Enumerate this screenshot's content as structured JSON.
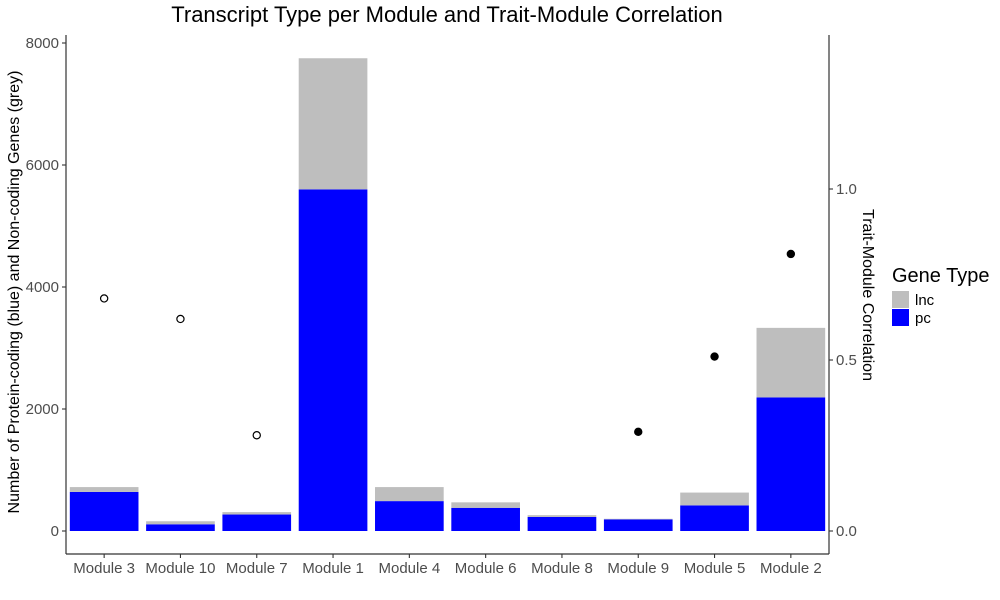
{
  "chart_data": {
    "type": "bar",
    "title": "Transcript Type per Module and Trait-Module Correlation",
    "xlabel": "",
    "ylabel": "Number of Protein-coding (blue) and Non-coding Genes (grey)",
    "y2label": "Trait-Module Correlation",
    "ylim": [
      0,
      8100
    ],
    "y2lim": [
      -0.04,
      1.45
    ],
    "yticks": [
      0,
      2000,
      4000,
      6000,
      8000
    ],
    "y2ticks": [
      0.0,
      0.5,
      1.0
    ],
    "y2tick_labels": [
      "0.0",
      "0.5",
      "1.0"
    ],
    "stacked": true,
    "grid": false,
    "legend_position": "right",
    "legend_title": "Gene Type",
    "categories": [
      "Module 3",
      "Module 10",
      "Module 7",
      "Module 1",
      "Module 4",
      "Module 6",
      "Module 8",
      "Module 9",
      "Module 5",
      "Module 2"
    ],
    "series": [
      {
        "name": "pc",
        "color": "#0000ff",
        "values": [
          640,
          110,
          270,
          5600,
          490,
          380,
          230,
          190,
          420,
          2190
        ]
      },
      {
        "name": "lnc",
        "color": "#bebebe",
        "values": [
          80,
          50,
          40,
          2150,
          230,
          90,
          30,
          10,
          210,
          1140
        ]
      }
    ],
    "legend_entries": [
      {
        "name": "lnc",
        "color": "#bebebe"
      },
      {
        "name": "pc",
        "color": "#0000ff"
      }
    ],
    "correlation": {
      "axis": "secondary",
      "values": [
        0.68,
        0.62,
        0.28,
        null,
        null,
        null,
        null,
        0.29,
        0.51,
        0.81
      ],
      "filled": [
        false,
        false,
        false,
        null,
        null,
        null,
        null,
        true,
        true,
        true
      ]
    }
  }
}
